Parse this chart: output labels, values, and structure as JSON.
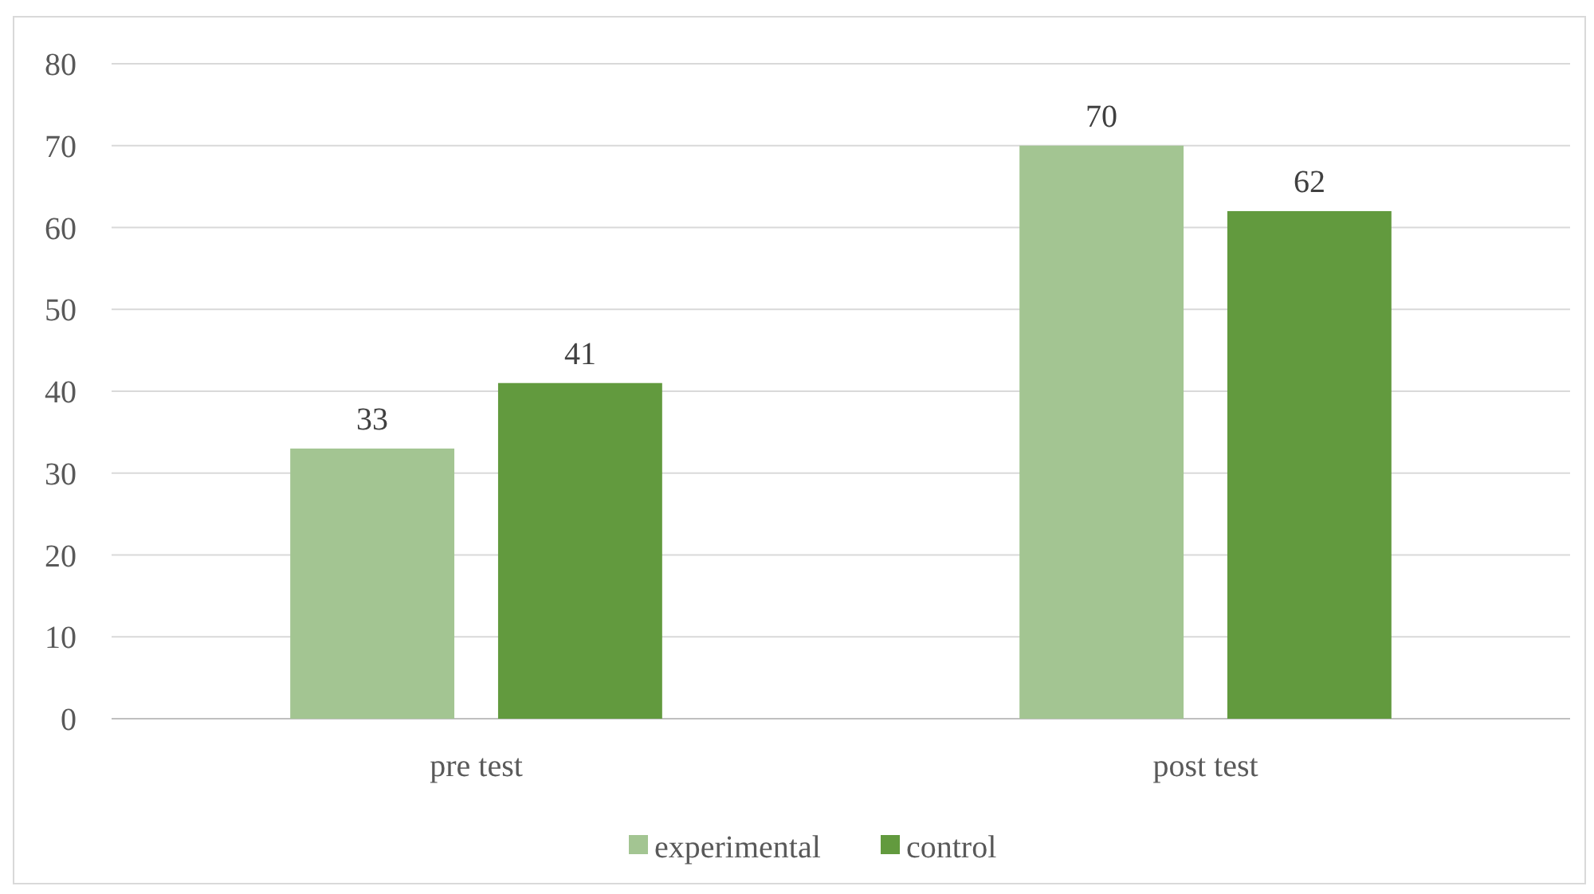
{
  "chart_data": {
    "type": "bar",
    "categories": [
      "pre test",
      "post test"
    ],
    "series": [
      {
        "name": "experimental",
        "color": "#a3c592",
        "values": [
          33,
          70
        ]
      },
      {
        "name": "control",
        "color": "#629a3e",
        "values": [
          41,
          62
        ]
      }
    ],
    "ylim": [
      0,
      80
    ],
    "yticks": [
      0,
      10,
      20,
      30,
      40,
      50,
      60,
      70,
      80
    ],
    "grid": "y",
    "legend": "bottom",
    "data_labels": true
  }
}
